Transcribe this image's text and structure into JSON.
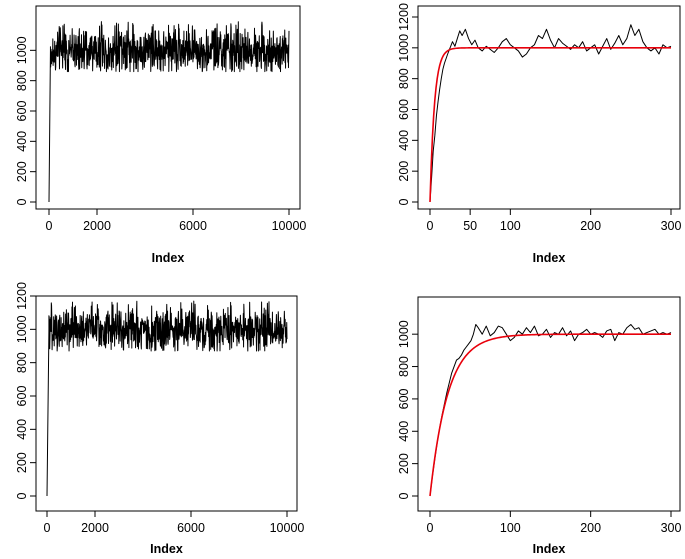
{
  "chart_data": [
    {
      "id": "top-left",
      "type": "line",
      "xlabel": "Index",
      "ylabel": "",
      "xlim": [
        0,
        10000
      ],
      "ylim": [
        0,
        1200
      ],
      "xticks": [
        0,
        2000,
        6000,
        10000
      ],
      "yticks": [
        0,
        200,
        400,
        600,
        800,
        1000
      ],
      "grid": false,
      "series": [
        {
          "kind": "noisy_trace",
          "color": "#000000",
          "x_start": 0,
          "x_end": 10000,
          "n_points": 900,
          "rise_end_x": 60,
          "start_value": 0,
          "level": 1000,
          "amplitude": 70,
          "peak_max": 1190,
          "trough_min": 860
        }
      ]
    },
    {
      "id": "top-right",
      "type": "line",
      "xlabel": "Index",
      "ylabel": "",
      "xlim": [
        0,
        300
      ],
      "ylim": [
        0,
        1200
      ],
      "xticks": [
        0,
        50,
        100,
        200,
        300
      ],
      "yticks": [
        0,
        200,
        400,
        600,
        800,
        1000,
        1200
      ],
      "grid": false,
      "series": [
        {
          "kind": "trace",
          "color": "#000000",
          "x": [
            0,
            2,
            4,
            6,
            8,
            10,
            12,
            14,
            16,
            18,
            20,
            22,
            25,
            28,
            31,
            34,
            37,
            40,
            44,
            48,
            52,
            56,
            60,
            65,
            70,
            75,
            80,
            85,
            90,
            95,
            100,
            105,
            110,
            115,
            120,
            125,
            130,
            135,
            140,
            145,
            150,
            155,
            160,
            165,
            170,
            175,
            180,
            185,
            190,
            195,
            200,
            205,
            210,
            215,
            220,
            225,
            230,
            235,
            240,
            245,
            250,
            255,
            260,
            265,
            270,
            275,
            280,
            285,
            290,
            295,
            300
          ],
          "y": [
            0,
            160,
            330,
            430,
            560,
            650,
            730,
            800,
            860,
            900,
            930,
            960,
            1000,
            1040,
            1010,
            1060,
            1110,
            1080,
            1120,
            1060,
            1020,
            1050,
            1000,
            980,
            1010,
            990,
            970,
            1000,
            1040,
            1060,
            1020,
            1000,
            980,
            940,
            960,
            1000,
            1020,
            1080,
            1060,
            1120,
            1050,
            1000,
            1060,
            1030,
            1010,
            990,
            1020,
            1000,
            1040,
            980,
            1000,
            1020,
            960,
            1010,
            1060,
            990,
            1030,
            1080,
            1020,
            1060,
            1150,
            1080,
            1120,
            1040,
            1000,
            980,
            1000,
            960,
            1020,
            1000,
            1010
          ]
        },
        {
          "kind": "saturation_curve",
          "color": "#e8000b",
          "asymptote": 1000,
          "rate": 0.18,
          "x_start": 0,
          "x_end": 300
        }
      ]
    },
    {
      "id": "bottom-left",
      "type": "line",
      "xlabel": "Index",
      "ylabel": "",
      "xlim": [
        0,
        10000
      ],
      "ylim": [
        0,
        1200
      ],
      "xticks": [
        0,
        2000,
        6000,
        10000
      ],
      "yticks": [
        0,
        200,
        400,
        600,
        800,
        1000,
        1200
      ],
      "grid": false,
      "series": [
        {
          "kind": "noisy_trace",
          "color": "#000000",
          "x_start": 0,
          "x_end": 10000,
          "n_points": 900,
          "rise_end_x": 80,
          "start_value": 0,
          "level": 1000,
          "amplitude": 60,
          "peak_max": 1170,
          "trough_min": 870
        }
      ]
    },
    {
      "id": "bottom-right",
      "type": "line",
      "xlabel": "Index",
      "ylabel": "",
      "xlim": [
        0,
        300
      ],
      "ylim": [
        0,
        1100
      ],
      "xticks": [
        0,
        100,
        200,
        300
      ],
      "yticks": [
        0,
        200,
        400,
        600,
        800,
        1000
      ],
      "grid": false,
      "series": [
        {
          "kind": "trace",
          "color": "#000000",
          "x": [
            0,
            3,
            6,
            9,
            12,
            15,
            18,
            21,
            24,
            27,
            30,
            33,
            36,
            39,
            42,
            45,
            48,
            51,
            54,
            57,
            60,
            65,
            70,
            75,
            80,
            85,
            90,
            95,
            100,
            105,
            110,
            115,
            120,
            125,
            130,
            135,
            140,
            145,
            150,
            155,
            160,
            165,
            170,
            175,
            180,
            185,
            190,
            195,
            200,
            205,
            210,
            215,
            220,
            225,
            230,
            235,
            240,
            245,
            250,
            255,
            260,
            265,
            270,
            275,
            280,
            285,
            290,
            295,
            300
          ],
          "y": [
            0,
            120,
            230,
            330,
            420,
            500,
            570,
            640,
            700,
            760,
            800,
            840,
            850,
            870,
            900,
            920,
            940,
            960,
            1000,
            1060,
            1040,
            1000,
            1050,
            990,
            1010,
            1050,
            1040,
            1000,
            960,
            980,
            1020,
            1000,
            1040,
            1010,
            1050,
            990,
            1000,
            1030,
            980,
            1010,
            1000,
            1040,
            990,
            1020,
            960,
            1000,
            1010,
            1030,
            1000,
            1010,
            1000,
            980,
            1020,
            1030,
            960,
            1010,
            1000,
            1040,
            1060,
            1030,
            1040,
            1000,
            1010,
            1020,
            1030,
            1000,
            1010,
            1000,
            1010
          ]
        },
        {
          "kind": "saturation_curve",
          "color": "#e8000b",
          "asymptote": 1000,
          "rate": 0.045,
          "x_start": 0,
          "x_end": 300
        }
      ]
    }
  ]
}
